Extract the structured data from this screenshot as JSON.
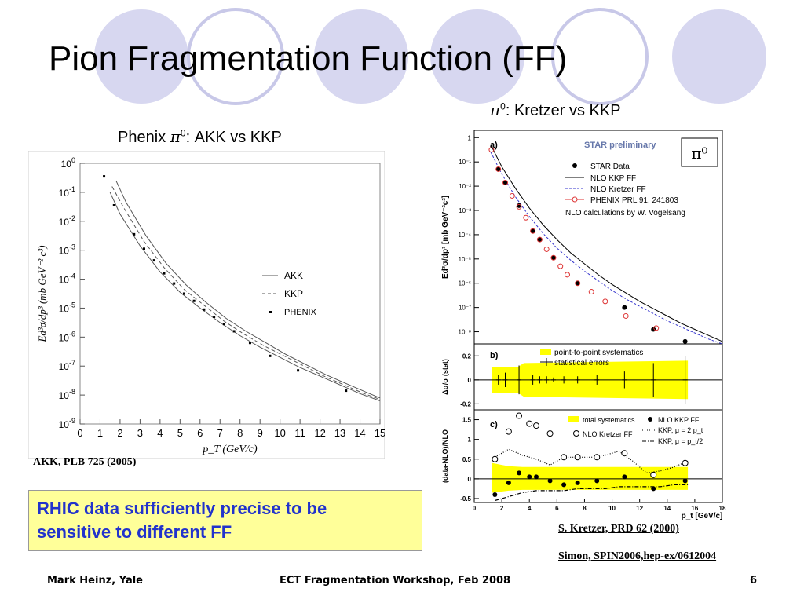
{
  "slide": {
    "title": "Pion Fragmentation Function (FF)",
    "left_caption_text": "Phenix ",
    "left_caption_pi": "π",
    "left_caption_sup": "0",
    "left_caption_rest": ": AKK vs KKP",
    "right_caption_pi": "π",
    "right_caption_sup": "0",
    "right_caption_rest": ": Kretzer vs KKP",
    "ref_left": "AKK, PLB 725 (2005)",
    "ref_right_1": "S. Kretzer, PRD 62 (2000)",
    "ref_right_2": "Simon, SPIN2006,hep-ex/0612004",
    "callout_line1": "RHIC data sufficiently precise to be",
    "callout_line2": "sensitive to different FF",
    "footer_left": "Mark Heinz, Yale",
    "footer_center": "ECT Fragmentation Workshop, Feb 2008",
    "footer_right": "6"
  },
  "colors": {
    "circle_fill": "#d7d7f0",
    "circle_outline": "#c8c8e8",
    "callout_bg": "#ffff99",
    "callout_text": "#2233cc",
    "yellow_band": "#ffff00",
    "kretzer_curve": "#3333cc",
    "phenix_open": "#dd3333",
    "star_title": "#6677aa"
  },
  "chart_data": [
    {
      "id": "phenix",
      "type": "line",
      "xlabel": "p_T (GeV/c)",
      "ylabel": "Ed³σ/dp³ (mb GeV⁻² c³)",
      "xlim": [
        0,
        15
      ],
      "ylim_log10": [
        -9,
        0
      ],
      "x_ticks": [
        0,
        1,
        2,
        3,
        4,
        5,
        6,
        7,
        8,
        9,
        10,
        11,
        12,
        13,
        14,
        15
      ],
      "y_tick_exponents": [
        0,
        -1,
        -2,
        -3,
        -4,
        -5,
        -6,
        -7,
        -8,
        -9
      ],
      "legend": {
        "placement": "right",
        "entries": [
          "AKK",
          "KKP",
          "PHENIX"
        ]
      },
      "series": [
        {
          "name": "AKK",
          "style": "solid",
          "x": [
            1.5,
            2,
            3,
            4,
            5,
            6,
            7,
            8,
            9,
            10,
            11,
            12,
            13,
            14,
            15
          ],
          "y_log10": [
            -1.0,
            -1.75,
            -2.85,
            -3.75,
            -4.45,
            -5.0,
            -5.5,
            -5.95,
            -6.35,
            -6.7,
            -7.05,
            -7.35,
            -7.65,
            -7.95,
            -8.2
          ]
        },
        {
          "name": "AKK (band)",
          "style": "solid",
          "x": [
            1.8,
            2.3,
            3.3,
            4.3,
            5.3,
            6.3,
            7.3,
            8.3,
            9.3,
            10.3,
            11.3,
            12.3,
            13.3,
            14.3,
            15
          ],
          "y_log10": [
            -0.6,
            -1.35,
            -2.5,
            -3.45,
            -4.2,
            -4.8,
            -5.35,
            -5.8,
            -6.2,
            -6.6,
            -6.95,
            -7.3,
            -7.6,
            -7.9,
            -8.1
          ]
        },
        {
          "name": "KKP",
          "style": "dashed",
          "x": [
            1.6,
            2.2,
            3.2,
            4.2,
            5.2,
            6.2,
            7.2,
            8.2,
            9.2,
            10.2,
            11.2,
            12.2,
            13.2,
            14.2,
            15
          ],
          "y_log10": [
            -0.8,
            -1.55,
            -2.7,
            -3.6,
            -4.35,
            -4.9,
            -5.45,
            -5.9,
            -6.3,
            -6.65,
            -7.0,
            -7.35,
            -7.65,
            -7.95,
            -8.15
          ]
        },
        {
          "name": "PHENIX",
          "style": "points",
          "x": [
            1.2,
            1.7,
            2.7,
            3.2,
            3.7,
            4.2,
            4.7,
            5.2,
            5.7,
            6.2,
            6.7,
            7.2,
            7.7,
            8.5,
            9.5,
            10.9,
            13.3
          ],
          "y_log10": [
            -0.45,
            -1.45,
            -2.45,
            -2.95,
            -3.35,
            -3.8,
            -4.15,
            -4.5,
            -4.75,
            -5.05,
            -5.3,
            -5.55,
            -5.8,
            -6.2,
            -6.65,
            -7.15,
            -7.85
          ]
        }
      ]
    },
    {
      "id": "star_a",
      "type": "line",
      "panel_label": "a)",
      "title": "STAR preliminary",
      "symbol_box": "π⁰",
      "ylabel": "Ed³σ/dp³ [mb GeV⁻²c²]",
      "xlim": [
        0,
        18
      ],
      "ylim_log10": [
        -8.5,
        0.3
      ],
      "y_tick_labels": [
        "1",
        "10⁻¹",
        "10⁻²",
        "10⁻³",
        "10⁻⁴",
        "10⁻⁵",
        "10⁻⁶",
        "10⁻⁷",
        "10⁻⁸"
      ],
      "legend": {
        "placement": "top-right",
        "entries": [
          "STAR Data",
          "NLO KKP FF",
          "NLO Kretzer FF",
          "PHENIX PRL 91, 241803"
        ],
        "note": "NLO calculations by W. Vogelsang"
      },
      "series": [
        {
          "name": "NLO KKP FF",
          "style": "solid",
          "x": [
            1.2,
            2,
            3,
            4,
            5,
            6,
            7,
            8,
            9,
            10,
            11,
            12,
            13,
            14,
            15,
            16,
            17,
            18
          ],
          "y_log10": [
            -0.3,
            -1.2,
            -2.1,
            -2.9,
            -3.6,
            -4.2,
            -4.75,
            -5.2,
            -5.65,
            -6.05,
            -6.4,
            -6.75,
            -7.05,
            -7.35,
            -7.65,
            -7.9,
            -8.15,
            -8.4
          ]
        },
        {
          "name": "NLO Kretzer FF",
          "style": "dashed",
          "x": [
            1.2,
            2,
            3,
            4,
            5,
            6,
            7,
            8,
            9,
            10,
            11,
            12,
            13,
            14,
            15,
            16,
            17,
            18
          ],
          "y_log10": [
            -0.6,
            -1.5,
            -2.45,
            -3.25,
            -3.95,
            -4.55,
            -5.05,
            -5.5,
            -5.9,
            -6.3,
            -6.65,
            -6.95,
            -7.25,
            -7.55,
            -7.8,
            -8.05,
            -8.3,
            -8.5
          ]
        },
        {
          "name": "STAR Data",
          "style": "filled",
          "x": [
            1.75,
            2.25,
            3.25,
            4.25,
            4.75,
            5.75,
            7.5,
            10.9,
            13.0,
            15.3
          ],
          "y_log10": [
            -1.3,
            -1.85,
            -2.8,
            -3.85,
            -4.2,
            -4.95,
            -6.0,
            -7.0,
            -7.9,
            -8.4
          ]
        },
        {
          "name": "PHENIX PRL 91, 241803",
          "style": "open",
          "x": [
            1.25,
            1.75,
            2.25,
            2.75,
            3.25,
            3.75,
            4.25,
            4.75,
            5.25,
            5.75,
            6.25,
            6.75,
            7.5,
            8.5,
            9.5,
            11.0,
            13.2
          ],
          "y_log10": [
            -0.5,
            -1.3,
            -1.85,
            -2.4,
            -2.85,
            -3.3,
            -3.85,
            -4.2,
            -4.6,
            -4.95,
            -5.3,
            -5.65,
            -6.0,
            -6.35,
            -6.75,
            -7.35,
            -7.85
          ]
        }
      ]
    },
    {
      "id": "star_b",
      "type": "scatter",
      "panel_label": "b)",
      "ylabel": "Δσ/σ (stat)",
      "xlim": [
        0,
        18
      ],
      "ylim": [
        -0.25,
        0.3
      ],
      "y_ticks": [
        -0.2,
        0,
        0.2
      ],
      "legend": {
        "placement": "top",
        "entries": [
          "point-to-point systematics",
          "statistical errors"
        ]
      },
      "band": {
        "x": [
          1.3,
          3.2,
          3.6,
          15.5
        ],
        "hi": [
          0.11,
          0.11,
          0.14,
          0.16
        ],
        "lo": [
          -0.11,
          -0.11,
          -0.14,
          -0.16
        ]
      },
      "points": {
        "x": [
          1.75,
          2.25,
          3.25,
          4.25,
          4.75,
          5.25,
          5.75,
          6.5,
          7.5,
          8.9,
          10.9,
          13.0,
          15.3
        ],
        "y": [
          0,
          0,
          0,
          0,
          0,
          0,
          0,
          0,
          0,
          0,
          0,
          0,
          0
        ],
        "err": [
          0.04,
          0.06,
          0.12,
          0.04,
          0.03,
          0.03,
          0.02,
          0.03,
          0.03,
          0.04,
          0.07,
          0.14,
          0.2
        ]
      }
    },
    {
      "id": "star_c",
      "type": "scatter",
      "panel_label": "c)",
      "xlabel": "p_t [GeV/c]",
      "ylabel": "(data-NLO)/NLO",
      "xlim": [
        0,
        18
      ],
      "x_ticks": [
        0,
        2,
        4,
        6,
        8,
        10,
        12,
        14,
        16,
        18
      ],
      "ylim": [
        -0.6,
        1.75
      ],
      "y_ticks": [
        -0.5,
        0,
        0.5,
        1,
        1.5
      ],
      "legend": {
        "placement": "top-right",
        "entries": [
          "total systematics",
          "NLO KKP FF",
          "NLO Kretzer FF",
          "KKP, μ = 2 p_t",
          "KKP, μ = p_t/2"
        ]
      },
      "band": {
        "x": [
          1.3,
          2.5,
          3.5,
          15.5
        ],
        "hi": [
          0.4,
          0.32,
          0.3,
          0.3
        ],
        "lo": [
          -0.35,
          -0.3,
          -0.28,
          -0.28
        ]
      },
      "series": [
        {
          "name": "NLO KKP FF",
          "style": "filled",
          "x": [
            1.5,
            2.5,
            3.25,
            4.0,
            4.5,
            5.5,
            6.5,
            7.5,
            8.9,
            10.9,
            13.0,
            15.3
          ],
          "y": [
            -0.4,
            -0.1,
            0.15,
            0.05,
            0.05,
            -0.05,
            -0.15,
            -0.1,
            -0.05,
            0.05,
            -0.25,
            -0.05
          ]
        },
        {
          "name": "NLO Kretzer FF",
          "style": "open",
          "x": [
            1.5,
            2.5,
            3.25,
            4.0,
            4.5,
            5.5,
            6.5,
            7.5,
            8.9,
            10.9,
            13.0,
            15.3
          ],
          "y": [
            0.5,
            1.2,
            1.6,
            1.4,
            1.35,
            1.15,
            0.55,
            0.55,
            0.55,
            0.65,
            0.1,
            0.4
          ]
        },
        {
          "name": "KKP, μ = 2 p_t",
          "style": "dotted",
          "x": [
            1.5,
            2.5,
            3.5,
            4.5,
            5.5,
            6.5,
            7.5,
            8.5,
            9.5,
            10.5,
            11.5,
            12.5,
            13.5,
            14.5,
            15.5
          ],
          "y": [
            0.55,
            0.75,
            0.6,
            0.5,
            0.35,
            0.55,
            0.55,
            0.55,
            0.6,
            0.7,
            0.45,
            0.15,
            0.2,
            0.3,
            0.45
          ]
        },
        {
          "name": "KKP, μ = p_t/2",
          "style": "dashdot",
          "x": [
            1.5,
            2.5,
            3.5,
            4.5,
            5.5,
            6.5,
            7.5,
            8.5,
            9.5,
            10.5,
            11.5,
            12.5,
            13.5,
            14.5,
            15.5
          ],
          "y": [
            -0.55,
            -0.45,
            -0.35,
            -0.3,
            -0.3,
            -0.3,
            -0.25,
            -0.25,
            -0.25,
            -0.2,
            -0.2,
            -0.2,
            -0.2,
            -0.15,
            -0.15
          ]
        }
      ]
    }
  ]
}
